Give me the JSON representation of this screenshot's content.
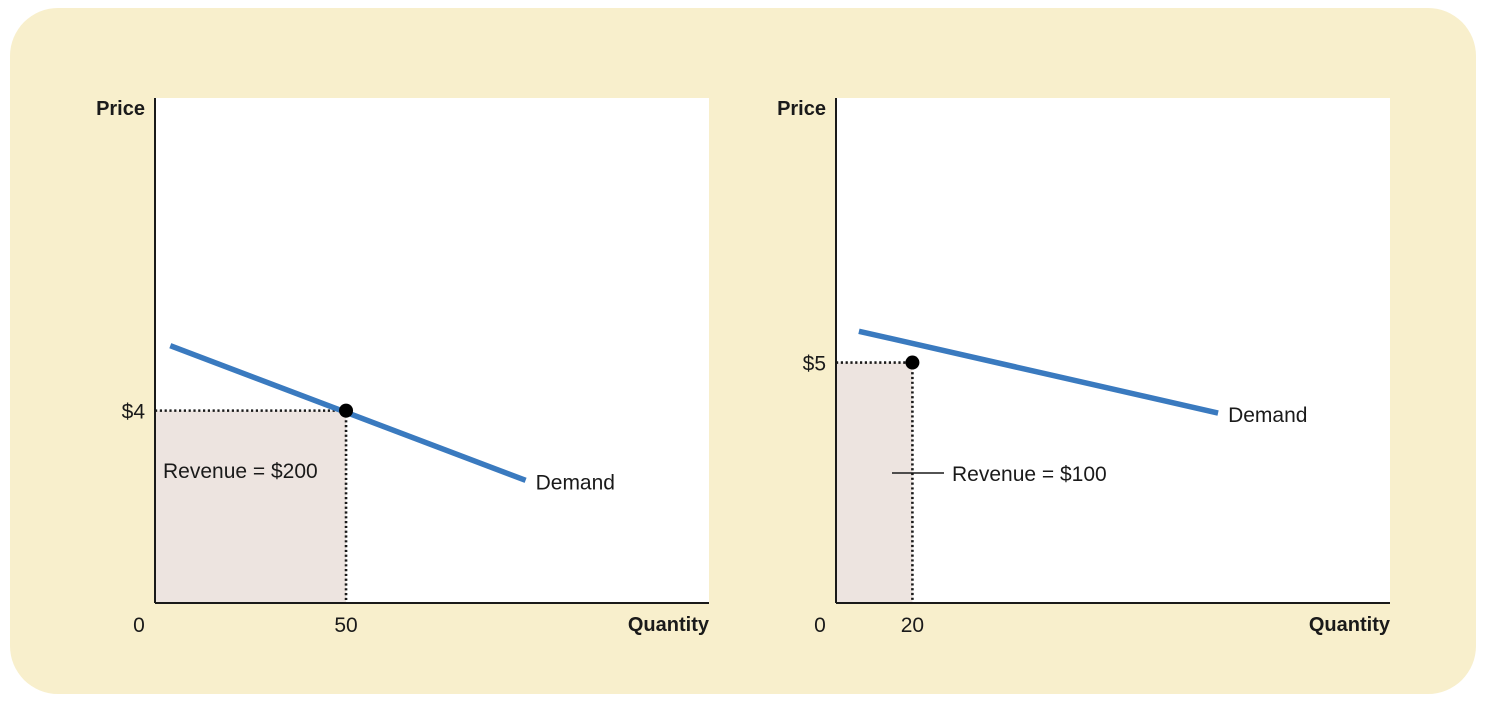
{
  "chart_data": [
    {
      "type": "line",
      "ylabel": "Price",
      "xlabel": "Quantity",
      "origin_label": "0",
      "xlim": [
        0,
        145
      ],
      "ylim": [
        0,
        10.5
      ],
      "x_tick": {
        "value": 50,
        "label": "50"
      },
      "y_tick": {
        "value": 4,
        "label": "$4"
      },
      "series": [
        {
          "name": "Demand",
          "points": [
            [
              4,
              5.35
            ],
            [
              97,
              2.55
            ]
          ]
        }
      ],
      "point": {
        "x": 50,
        "y": 4
      },
      "revenue_label": "Revenue = $200",
      "color": "#3a7abf",
      "shade_color": "#ede4e0"
    },
    {
      "type": "line",
      "ylabel": "Price",
      "xlabel": "Quantity",
      "origin_label": "0",
      "xlim": [
        0,
        145
      ],
      "ylim": [
        0,
        10.5
      ],
      "x_tick": {
        "value": 20,
        "label": "20"
      },
      "y_tick": {
        "value": 5,
        "label": "$5"
      },
      "series": [
        {
          "name": "Demand",
          "points": [
            [
              6,
              5.65
            ],
            [
              100,
              3.95
            ]
          ]
        }
      ],
      "point": {
        "x": 20,
        "y": 5
      },
      "revenue_label": "Revenue = $100",
      "color": "#3a7abf",
      "shade_color": "#ede4e0"
    }
  ],
  "background_color": "#f8efcc"
}
